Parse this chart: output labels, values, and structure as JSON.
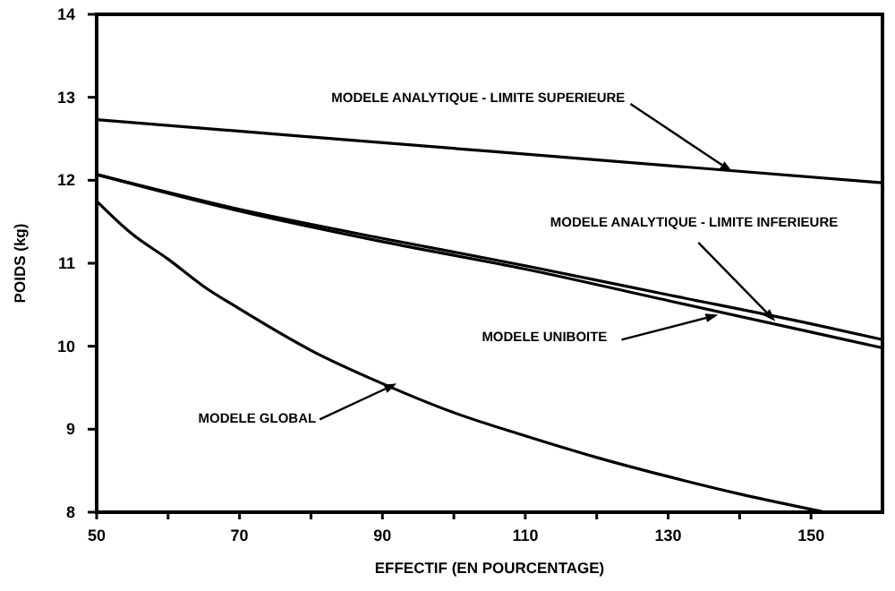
{
  "chart_data": {
    "type": "line",
    "xlabel": "EFFECTIF (EN POURCENTAGE)",
    "ylabel": "POIDS (kg)",
    "xlim": [
      50,
      160
    ],
    "ylim": [
      8,
      14
    ],
    "xticks": [
      50,
      {
        "value": 60,
        "label": null
      },
      70,
      {
        "value": 80,
        "label": null
      },
      90,
      {
        "value": 100,
        "label": null
      },
      110,
      {
        "value": 120,
        "label": null
      },
      130,
      {
        "value": 140,
        "label": null
      },
      150
    ],
    "yticks": [
      8,
      9,
      10,
      11,
      12,
      13,
      14
    ],
    "grid": false,
    "marker": "none",
    "line_style": "solid",
    "series": [
      {
        "color": "#000000",
        "x": [
          50,
          105,
          160
        ],
        "values": [
          12.73,
          12.35,
          11.97
        ]
      },
      {
        "color": "#000000",
        "x": [
          50,
          70,
          90,
          110,
          130,
          150,
          160
        ],
        "values": [
          12.07,
          11.65,
          11.3,
          10.97,
          10.62,
          10.27,
          10.08
        ]
      },
      {
        "color": "#000000",
        "x": [
          50,
          70,
          90,
          110,
          130,
          150,
          160
        ],
        "values": [
          12.07,
          11.63,
          11.26,
          10.93,
          10.55,
          10.17,
          9.98
        ]
      },
      {
        "color": "#000000",
        "x": [
          50,
          55,
          60,
          65,
          70,
          80,
          90,
          100,
          110,
          120,
          130,
          140,
          152
        ],
        "values": [
          11.75,
          11.35,
          11.05,
          10.72,
          10.45,
          9.95,
          9.55,
          9.2,
          8.92,
          8.66,
          8.43,
          8.22,
          8.0
        ]
      }
    ],
    "annotations": [
      {
        "text": "MODELE ANALYTIQUE - LIMITE SUPERIEURE",
        "x": 139,
        "y": 12.1
      },
      {
        "text": "MODELE ANALYTIQUE - LIMITE INFERIEURE",
        "x": 145,
        "y": 10.3
      },
      {
        "text": "MODELE UNIBOITE",
        "x": 137,
        "y": 10.38
      },
      {
        "text": "MODELE GLOBAL",
        "x": 92,
        "y": 9.55
      }
    ]
  }
}
